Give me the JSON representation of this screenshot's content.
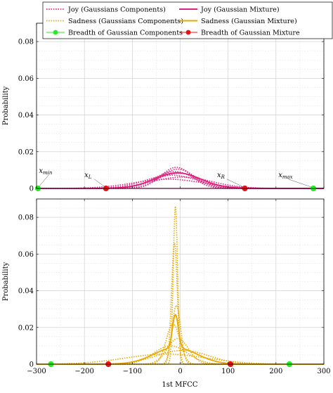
{
  "chart_data": {
    "type": "line",
    "xlabel": "1st MFCC",
    "xlim": [
      -300,
      300
    ],
    "xticks": [
      -300,
      -200,
      -100,
      0,
      100,
      200,
      300
    ],
    "xtick_labels": [
      "−300",
      "−200",
      "−100",
      "0",
      "100",
      "200",
      "300"
    ],
    "legend": {
      "placement": "top",
      "columns": 2,
      "entries": [
        {
          "label": "Joy (Gaussians Components)",
          "style": "dotted",
          "color": "#e0207e"
        },
        {
          "label": "Joy (Gaussian Mixture)",
          "style": "solid",
          "color": "#e0207e"
        },
        {
          "label": "Sadness (Gaussians Components)",
          "style": "dotted",
          "color": "#e8a800"
        },
        {
          "label": "Sadness (Gaussian Mixture)",
          "style": "solid",
          "color": "#e8a800"
        },
        {
          "label": "Breadth of Gaussian Components",
          "style": "marker",
          "color": "#22ee22"
        },
        {
          "label": "Breadth of Gaussian Mixture",
          "style": "marker",
          "color": "#ee1111"
        }
      ]
    },
    "panels": [
      {
        "ylabel": "Probability",
        "ylim": [
          0,
          0.09
        ],
        "yticks": [
          0,
          0.02,
          0.04,
          0.06,
          0.08
        ],
        "ytick_labels": [
          "0",
          "0.02",
          "0.04",
          "0.06",
          "0.08"
        ],
        "color": "#e0207e",
        "components": [
          {
            "mean": -8,
            "sd": 32,
            "amp": 0.0115
          },
          {
            "mean": -5,
            "sd": 36,
            "amp": 0.0105
          },
          {
            "mean": -12,
            "sd": 42,
            "amp": 0.0092
          },
          {
            "mean": -2,
            "sd": 48,
            "amp": 0.0082
          },
          {
            "mean": -18,
            "sd": 55,
            "amp": 0.0072
          },
          {
            "mean": 4,
            "sd": 62,
            "amp": 0.0062
          },
          {
            "mean": -25,
            "sd": 72,
            "amp": 0.005
          }
        ],
        "mixture": {
          "mean": -6,
          "sd": 48,
          "amp": 0.0085
        },
        "component_breadth": [
          -297,
          278
        ],
        "mixture_breadth": [
          -155,
          135
        ],
        "annotations": [
          {
            "text": "x",
            "sub": "min",
            "x": -295,
            "y": 0.0085,
            "target_x": -297
          },
          {
            "text": "x",
            "sub": "L",
            "x": -200,
            "y": 0.0062,
            "target_x": -155
          },
          {
            "text": "x",
            "sub": "R",
            "x": 77,
            "y": 0.0062,
            "target_x": 135
          },
          {
            "text": "x",
            "sub": "max",
            "x": 205,
            "y": 0.0062,
            "target_x": 278
          }
        ]
      },
      {
        "ylabel": "Probability",
        "ylim": [
          0,
          0.09
        ],
        "yticks": [
          0,
          0.02,
          0.04,
          0.06,
          0.08
        ],
        "ytick_labels": [
          "0",
          "0.02",
          "0.04",
          "0.06",
          "0.08"
        ],
        "color": "#e8a800",
        "components": [
          {
            "mean": -10,
            "sd": 4.5,
            "amp": 0.086
          },
          {
            "mean": -12,
            "sd": 6,
            "amp": 0.066
          },
          {
            "mean": -8,
            "sd": 9,
            "amp": 0.032
          },
          {
            "mean": -15,
            "sd": 14,
            "amp": 0.022
          },
          {
            "mean": -5,
            "sd": 22,
            "amp": 0.014
          },
          {
            "mean": -20,
            "sd": 35,
            "amp": 0.01
          },
          {
            "mean": 5,
            "sd": 55,
            "amp": 0.0075
          },
          {
            "mean": -30,
            "sd": 85,
            "amp": 0.0055
          }
        ],
        "mixture_peak": {
          "mean": -10,
          "sd": 6,
          "amp": 0.018
        },
        "mixture_base": {
          "mean": -10,
          "sd": 45,
          "amp": 0.009
        },
        "component_breadth": [
          -270,
          228
        ],
        "mixture_breadth": [
          -150,
          105
        ]
      }
    ]
  }
}
